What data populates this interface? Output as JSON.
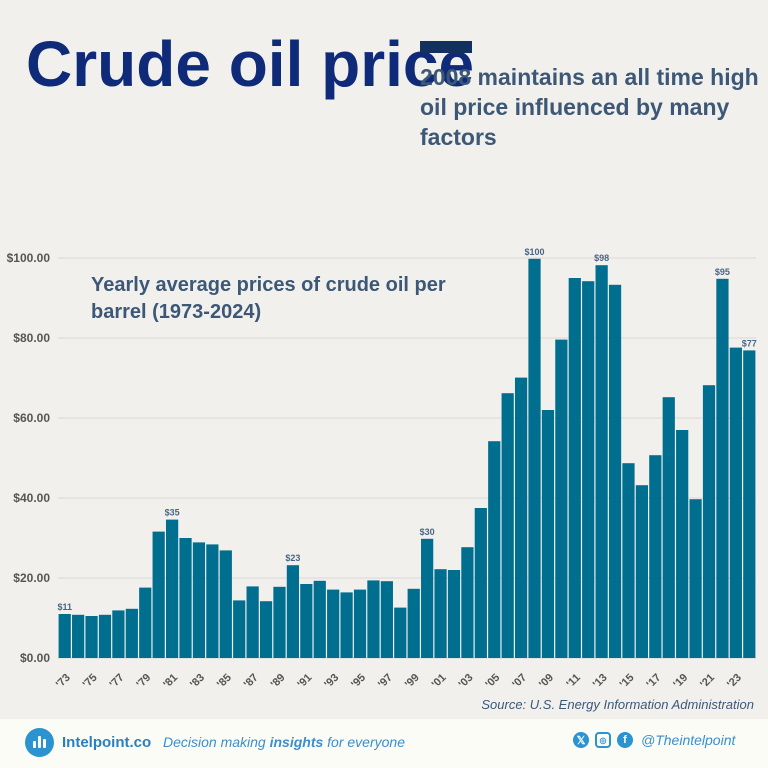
{
  "header": {
    "title": "Crude oil price",
    "subtitle": "2008 maintains an all time high oil price influenced by many factors"
  },
  "chart_data": {
    "type": "bar",
    "subtitle": "Yearly average prices of crude oil per barrel (1973-2024)",
    "categories": [
      1973,
      1974,
      1975,
      1976,
      1977,
      1978,
      1979,
      1980,
      1981,
      1982,
      1983,
      1984,
      1985,
      1986,
      1987,
      1988,
      1989,
      1990,
      1991,
      1992,
      1993,
      1994,
      1995,
      1996,
      1997,
      1998,
      1999,
      2000,
      2001,
      2002,
      2003,
      2004,
      2005,
      2006,
      2007,
      2008,
      2009,
      2010,
      2011,
      2012,
      2013,
      2014,
      2015,
      2016,
      2017,
      2018,
      2019,
      2020,
      2021,
      2022,
      2023,
      2024
    ],
    "x_tick_labels": [
      "'73",
      "'75",
      "'77",
      "'79",
      "'81",
      "'83",
      "'85",
      "'87",
      "'89",
      "'91",
      "'93",
      "'95",
      "'97",
      "'99",
      "'01",
      "'03",
      "'05",
      "'07",
      "'09",
      "'11",
      "'13",
      "'15",
      "'17",
      "'19",
      "'21",
      "'23"
    ],
    "values": [
      11.0,
      10.8,
      10.5,
      10.8,
      11.9,
      12.3,
      17.6,
      31.6,
      34.6,
      30.0,
      28.9,
      28.4,
      26.9,
      14.4,
      17.9,
      14.2,
      17.8,
      23.2,
      18.5,
      19.3,
      17.1,
      16.4,
      17.1,
      19.4,
      19.2,
      12.6,
      17.3,
      29.8,
      22.2,
      22.0,
      27.7,
      37.5,
      54.2,
      66.2,
      70.1,
      99.8,
      62.0,
      79.6,
      95.0,
      94.2,
      98.2,
      93.3,
      48.7,
      43.2,
      50.7,
      65.2,
      57.0,
      39.7,
      68.2,
      94.8,
      77.6,
      76.9
    ],
    "data_labels": [
      {
        "year": 1973,
        "text": "$11"
      },
      {
        "year": 1981,
        "text": "$35"
      },
      {
        "year": 1990,
        "text": "$23"
      },
      {
        "year": 2000,
        "text": "$30"
      },
      {
        "year": 2008,
        "text": "$100"
      },
      {
        "year": 2013,
        "text": "$98"
      },
      {
        "year": 2022,
        "text": "$95"
      },
      {
        "year": 2024,
        "text": "$77"
      }
    ],
    "y_ticks": [
      "$0.00",
      "$20.00",
      "$40.00",
      "$60.00",
      "$80.00",
      "$100.00"
    ],
    "y_tick_values": [
      0,
      20,
      40,
      60,
      80,
      100
    ],
    "ylim": [
      0,
      100
    ],
    "grid": true,
    "bar_color": "#006e8f",
    "xlabel": "",
    "ylabel": ""
  },
  "source": "Source: U.S. Energy Information Administration",
  "footer": {
    "brand": "Intelpoint.co",
    "tagline_pre": "Decision making ",
    "tagline_bold": "insights",
    "tagline_post": " for everyone",
    "social_icons": [
      "x-icon",
      "instagram-icon",
      "facebook-icon"
    ],
    "handle": "@Theintelpoint"
  }
}
